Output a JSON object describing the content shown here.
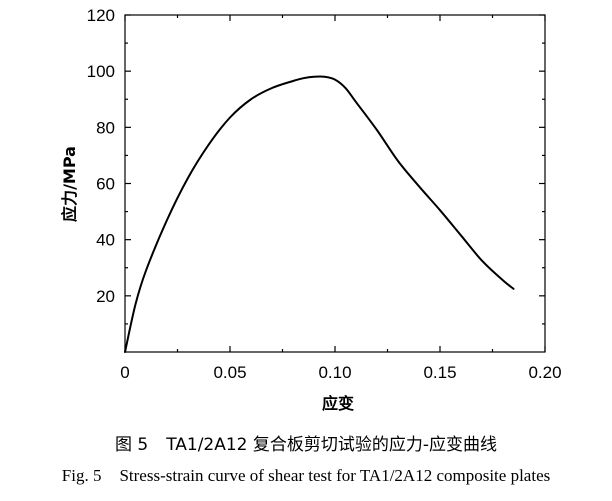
{
  "chart_data": {
    "type": "line",
    "title": "",
    "xlabel": "应变",
    "ylabel": "应力/MPa",
    "xlim": [
      0,
      0.2
    ],
    "ylim": [
      0,
      120
    ],
    "x_ticks": [
      0,
      0.05,
      0.1,
      0.15,
      0.2
    ],
    "x_tick_labels": [
      "0",
      "0.05",
      "0.10",
      "0.15",
      "0.20"
    ],
    "y_ticks": [
      20,
      40,
      60,
      80,
      100,
      120
    ],
    "y_tick_labels": [
      "20",
      "40",
      "60",
      "80",
      "100",
      "120"
    ],
    "grid": false,
    "series": [
      {
        "color": "#000000",
        "x": [
          0,
          0.005,
          0.01,
          0.02,
          0.03,
          0.04,
          0.05,
          0.06,
          0.07,
          0.08,
          0.085,
          0.09,
          0.095,
          0.1,
          0.105,
          0.11,
          0.12,
          0.13,
          0.14,
          0.15,
          0.16,
          0.17,
          0.18,
          0.185
        ],
        "y": [
          0,
          17,
          29,
          47,
          62,
          74,
          83.5,
          90,
          94,
          96.5,
          97.5,
          98,
          98,
          97,
          94,
          89,
          79,
          68,
          59,
          50.5,
          41.5,
          32.5,
          25.5,
          22.5
        ]
      }
    ]
  },
  "caption": {
    "cn_number": "图 5",
    "cn_text": "TA1/2A12 复合板剪切试验的应力-应变曲线",
    "en_number": "Fig. 5",
    "en_text": "Stress-strain curve of shear test for TA1/2A12 composite plates"
  }
}
